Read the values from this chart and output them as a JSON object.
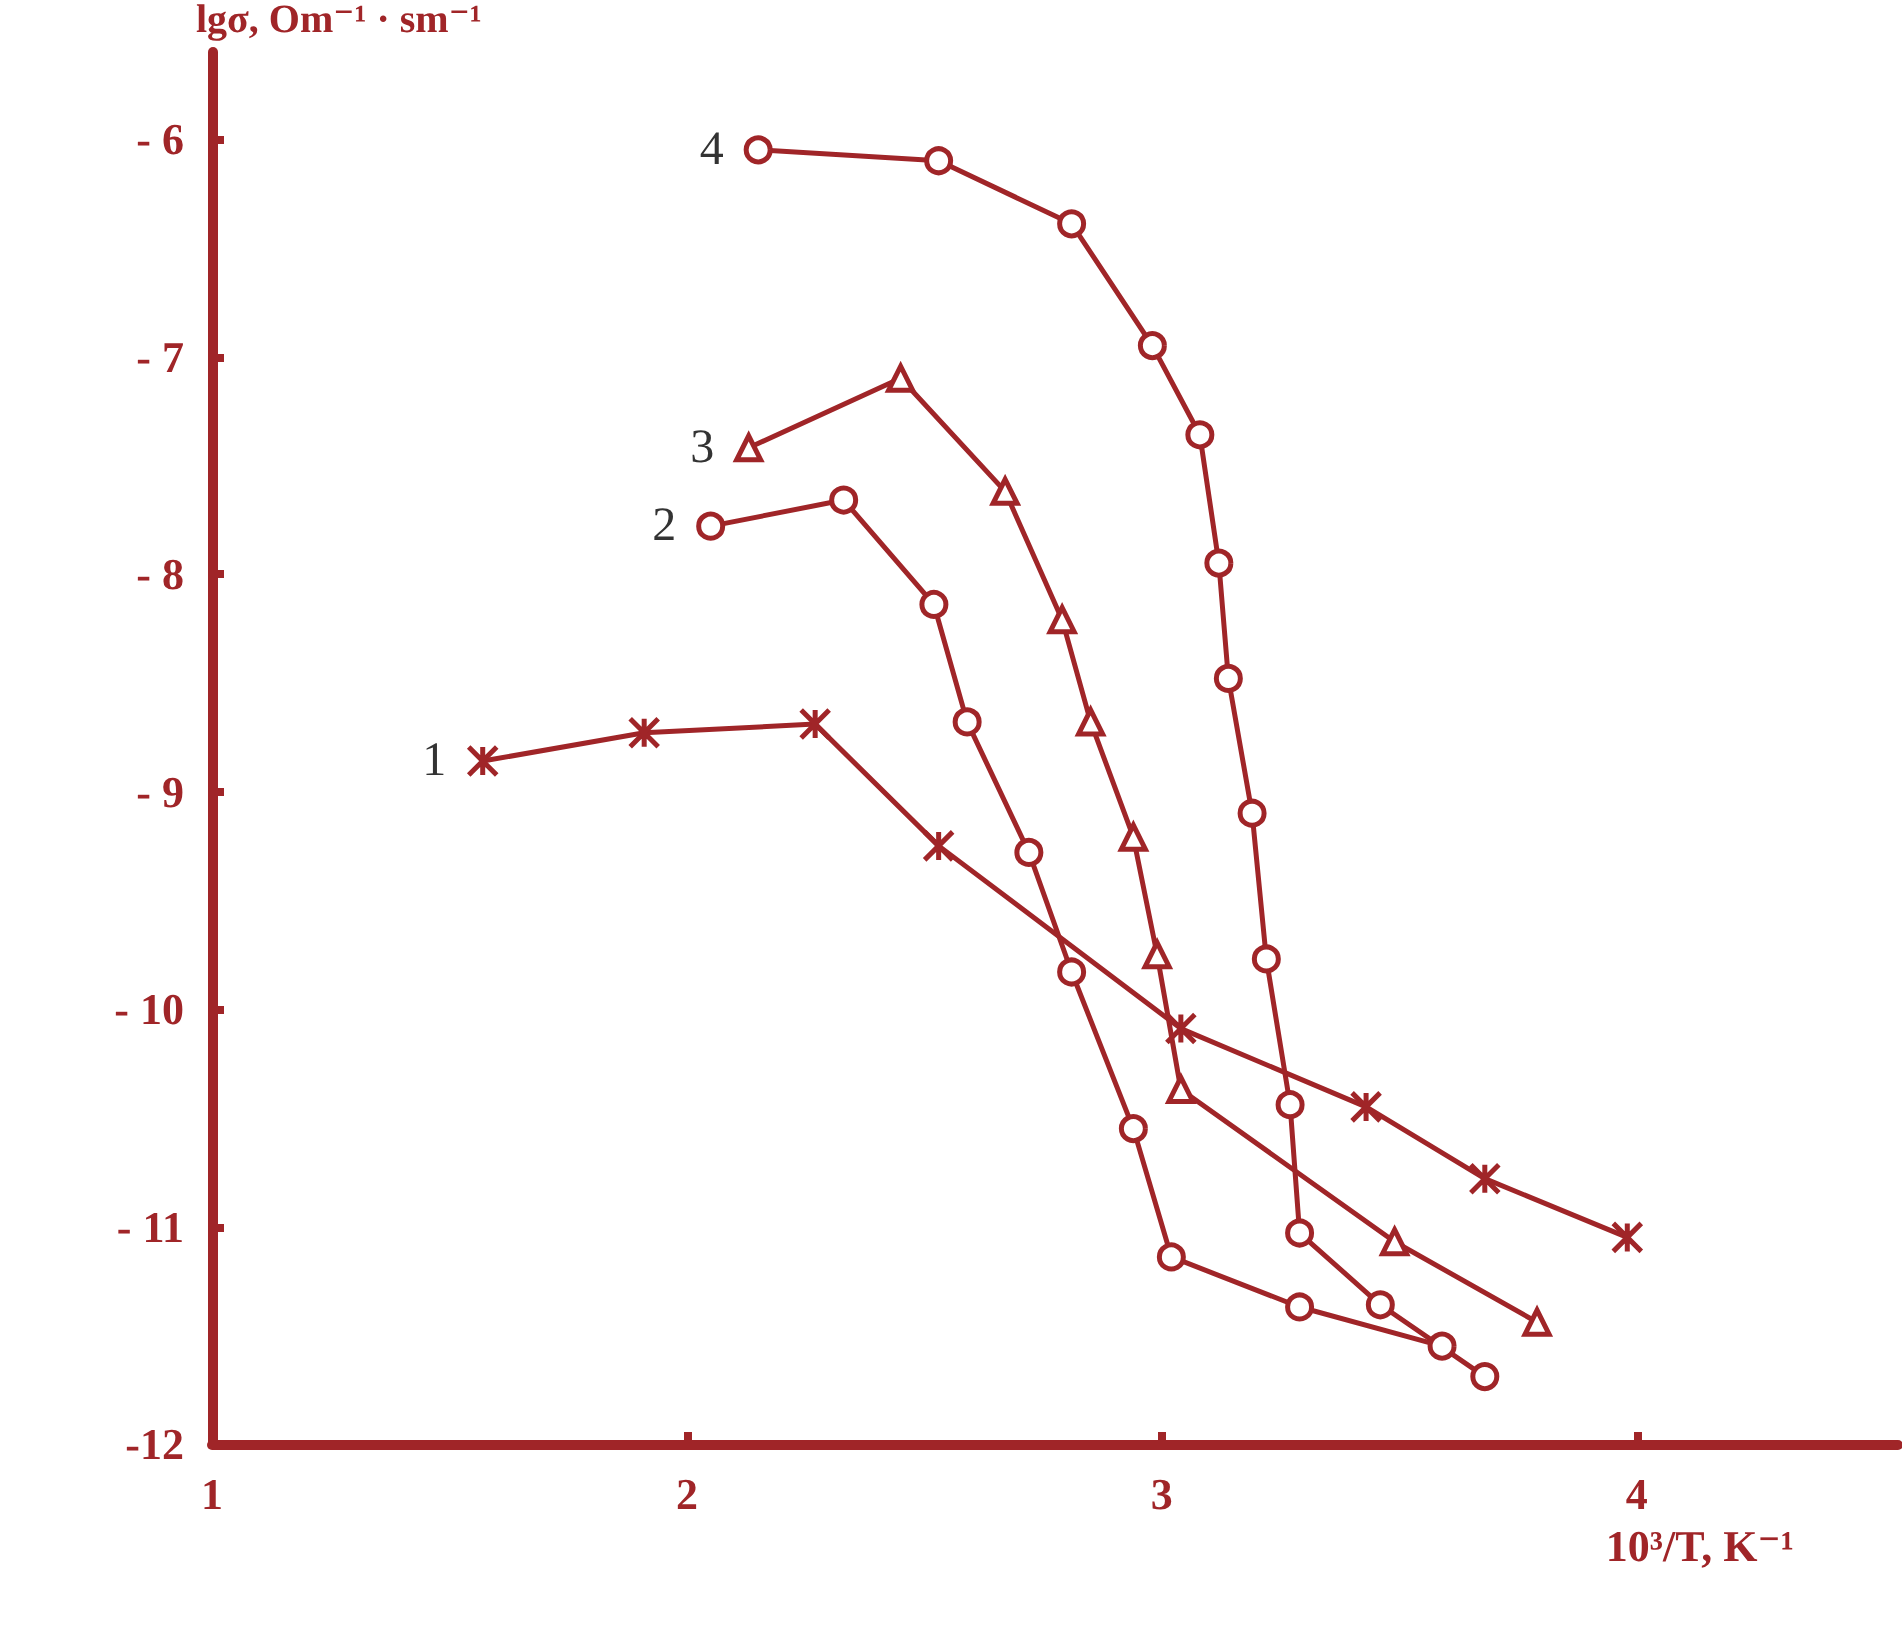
{
  "chart_data": {
    "type": "line",
    "xlabel": "10³/T, K⁻¹",
    "ylabel": "lgσ, Om⁻¹ · sm⁻¹",
    "xlim": [
      1,
      4.55
    ],
    "ylim": [
      -12,
      -5.6
    ],
    "xticks": [
      1,
      2,
      3,
      4
    ],
    "yticks": [
      {
        "value": -12,
        "label": "-12"
      },
      {
        "value": -11,
        "label": "- 11"
      },
      {
        "value": -10,
        "label": "- 10"
      },
      {
        "value": -9,
        "label": "- 9"
      },
      {
        "value": -8,
        "label": "- 8"
      },
      {
        "value": -7,
        "label": "- 7"
      },
      {
        "value": -6,
        "label": "- 6"
      }
    ],
    "grid": false,
    "legend": false,
    "series": [
      {
        "name": "1",
        "color": "#a02528",
        "marker": "cross",
        "x": [
          1.57,
          1.91,
          2.27,
          2.53,
          3.04,
          3.43,
          3.68,
          3.98
        ],
        "values": [
          -8.86,
          -8.73,
          -8.69,
          -9.25,
          -10.09,
          -10.45,
          -10.78,
          -11.05
        ]
      },
      {
        "name": "2",
        "color": "#a02528",
        "marker": "circle",
        "x": [
          2.05,
          2.33,
          2.52,
          2.59,
          2.72,
          2.81,
          2.94,
          3.02,
          3.29,
          3.59
        ],
        "values": [
          -7.78,
          -7.66,
          -8.14,
          -8.68,
          -9.28,
          -9.83,
          -10.55,
          -11.14,
          -11.37,
          -11.55
        ]
      },
      {
        "name": "3",
        "color": "#a02528",
        "marker": "triangle",
        "x": [
          2.13,
          2.45,
          2.67,
          2.79,
          2.85,
          2.94,
          2.99,
          3.04,
          3.49,
          3.79
        ],
        "values": [
          -7.42,
          -7.1,
          -7.62,
          -8.21,
          -8.68,
          -9.21,
          -9.75,
          -10.37,
          -11.07,
          -11.44
        ]
      },
      {
        "name": "4",
        "color": "#a02528",
        "marker": "circle",
        "x": [
          2.15,
          2.53,
          2.81,
          2.98,
          3.08,
          3.12,
          3.14,
          3.19,
          3.22,
          3.27,
          3.29,
          3.46,
          3.68
        ],
        "values": [
          -6.05,
          -6.1,
          -6.39,
          -6.95,
          -7.36,
          -7.95,
          -8.48,
          -9.1,
          -9.77,
          -10.44,
          -11.03,
          -11.36,
          -11.69
        ]
      }
    ]
  }
}
